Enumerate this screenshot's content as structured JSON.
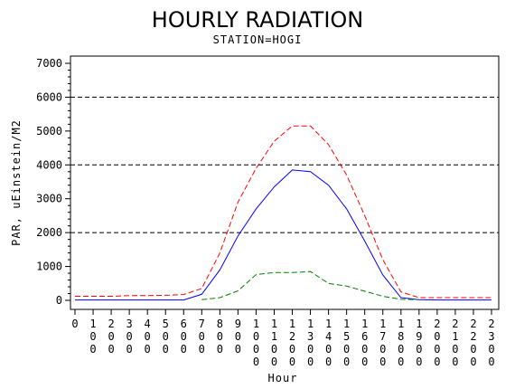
{
  "chart_data": {
    "type": "line",
    "title": "HOURLY RADIATION",
    "subtitle": "STATION=HOGI",
    "xlabel": "Hour",
    "ylabel": "PAR, uEinstein/M2",
    "x": [
      0,
      100,
      200,
      300,
      400,
      500,
      600,
      700,
      800,
      900,
      1000,
      1100,
      1200,
      1300,
      1400,
      1500,
      1600,
      1700,
      1800,
      1900,
      2000,
      2100,
      2200,
      2300
    ],
    "x_tick_labels": [
      "0",
      "100",
      "200",
      "300",
      "400",
      "500",
      "600",
      "700",
      "800",
      "900",
      "1000",
      "1100",
      "1200",
      "1300",
      "1400",
      "1500",
      "1600",
      "1700",
      "1800",
      "1900",
      "2000",
      "2100",
      "2200",
      "2300"
    ],
    "xlim": [
      0,
      2300
    ],
    "ylim": [
      0,
      7000
    ],
    "y_ticks": [
      0,
      1000,
      2000,
      3000,
      4000,
      5000,
      6000,
      7000
    ],
    "y_tick_labels": [
      "0",
      "1000",
      "2000",
      "3000",
      "4000",
      "5000",
      "6000",
      "7000"
    ],
    "reference_lines": [
      2000,
      4000,
      6000
    ],
    "legend": "none",
    "series": [
      {
        "color": "#ff0000",
        "style": "dashed",
        "values": [
          120,
          120,
          120,
          140,
          140,
          150,
          170,
          350,
          1400,
          2900,
          3900,
          4700,
          5150,
          5150,
          4600,
          3700,
          2500,
          1200,
          250,
          80,
          80,
          80,
          80,
          80
        ]
      },
      {
        "color": "#0000ff",
        "style": "solid",
        "values": [
          10,
          10,
          10,
          10,
          10,
          10,
          10,
          180,
          900,
          1900,
          2700,
          3350,
          3850,
          3800,
          3400,
          2700,
          1750,
          750,
          80,
          20,
          10,
          10,
          10,
          10
        ]
      },
      {
        "color": "#008000",
        "style": "dashed",
        "values": [
          null,
          null,
          null,
          null,
          null,
          null,
          null,
          20,
          80,
          280,
          760,
          820,
          820,
          850,
          500,
          420,
          270,
          120,
          30,
          20,
          null,
          null,
          null,
          null
        ]
      }
    ]
  }
}
